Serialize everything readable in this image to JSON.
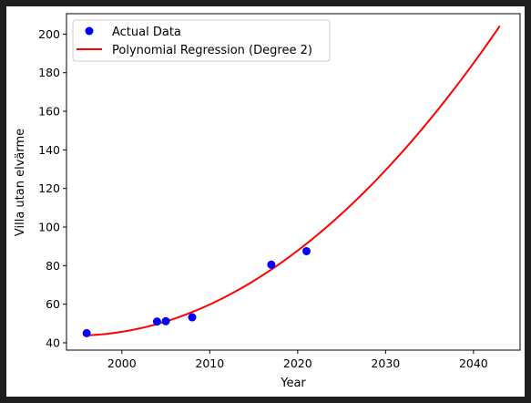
{
  "chart_data": {
    "type": "scatter",
    "xlabel": "Year",
    "ylabel": "Villa utan elvärme",
    "xlim": [
      1993.7,
      2045.3
    ],
    "ylim": [
      36.2,
      210.6
    ],
    "xticks": [
      2000,
      2010,
      2020,
      2030,
      2040
    ],
    "yticks": [
      40,
      60,
      80,
      100,
      120,
      140,
      160,
      180,
      200
    ],
    "legend_position": "top-left",
    "series": [
      {
        "name": "Actual Data",
        "kind": "scatter",
        "color": "#0000ff",
        "x": [
          1996,
          2004,
          2005,
          2008,
          2017,
          2021
        ],
        "y": [
          45.0,
          51.0,
          51.2,
          53.2,
          80.5,
          87.5
        ]
      },
      {
        "name": "Polynomial Regression (Degree 2)",
        "kind": "line",
        "color": "#ff0000",
        "x": [
          1996,
          2000,
          2005,
          2010,
          2015,
          2020,
          2025,
          2030,
          2035,
          2040,
          2043
        ],
        "y": [
          44.0,
          45.9,
          51.1,
          59.6,
          71.7,
          87.5,
          106.5,
          129.8,
          156.6,
          186.1,
          202.6
        ]
      }
    ]
  }
}
